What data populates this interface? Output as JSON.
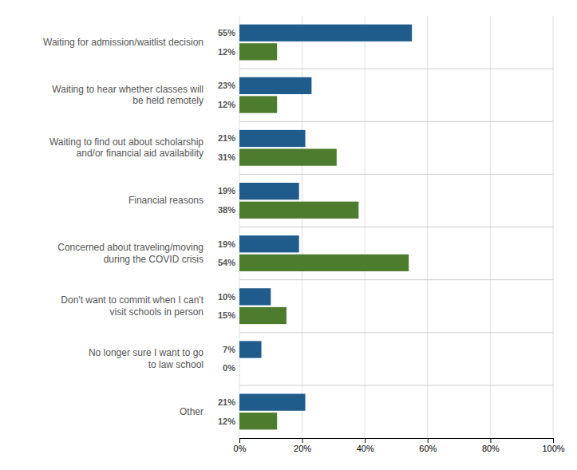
{
  "chart_data": {
    "type": "bar",
    "orientation": "horizontal",
    "categories": [
      "Waiting for admission/waitlist decision",
      "Waiting to hear whether classes will\nbe held remotely",
      "Waiting to find out about scholarship\nand/or financial aid availability",
      "Financial reasons",
      "Concerned about traveling/moving\nduring the COVID crisis",
      "Don't want to commit when I can't\nvisit schools in person",
      "No longer sure I want to go\nto law school",
      "Other"
    ],
    "series": [
      {
        "color": "#1F5C8B",
        "values": [
          55,
          23,
          21,
          19,
          19,
          10,
          7,
          21
        ],
        "value_labels": [
          "55%",
          "23%",
          "21%",
          "19%",
          "19%",
          "10%",
          "7%",
          "21%"
        ]
      },
      {
        "color": "#4E7C2F",
        "values": [
          12,
          12,
          31,
          38,
          54,
          15,
          0,
          12
        ],
        "value_labels": [
          "12%",
          "12%",
          "31%",
          "38%",
          "54%",
          "15%",
          "0%",
          "12%"
        ]
      }
    ],
    "xlim": [
      0,
      100
    ],
    "xticks": [
      {
        "value": 0,
        "label": "0%"
      },
      {
        "value": 20,
        "label": "20%"
      },
      {
        "value": 40,
        "label": "40%"
      },
      {
        "value": 60,
        "label": "60%"
      },
      {
        "value": 80,
        "label": "80%"
      },
      {
        "value": 100,
        "label": "100%"
      }
    ],
    "grid": true,
    "data_labels": true
  }
}
